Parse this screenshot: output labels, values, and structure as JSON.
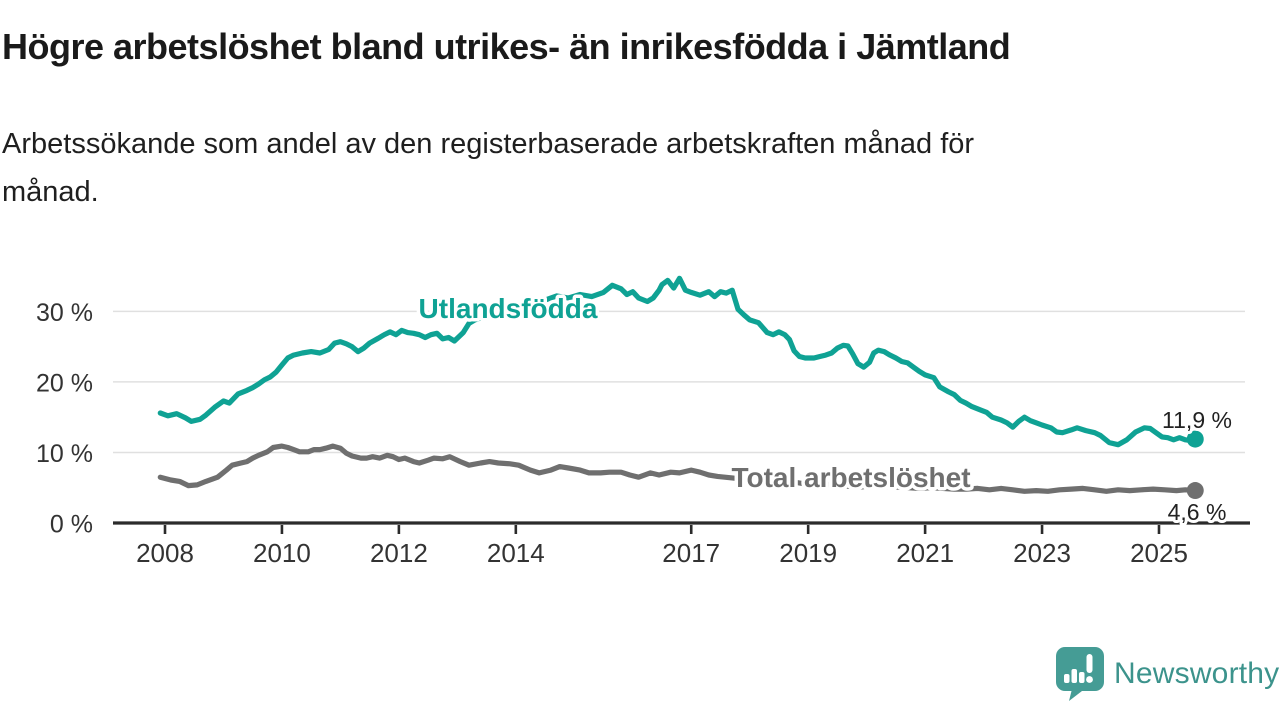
{
  "header": {
    "title": "Högre arbetslöshet bland utrikes- än inrikesfödda i Jämtland",
    "subtitle": "Arbetssökande som andel av den registerbaserade arbetskraften månad för månad.",
    "subtitle_lines": [
      "Arbetssökande som andel av den registerbaserade arbetskraften månad för",
      "månad."
    ]
  },
  "chart_data": {
    "type": "line",
    "title": "Högre arbetslöshet bland utrikes- än inrikesfödda i Jämtland",
    "xlabel": "",
    "ylabel": "Arbetssökande som andel av den registerbaserade arbetskraften",
    "unit": "%",
    "xlim": [
      2007.8,
      2026.3
    ],
    "ylim": [
      0,
      36
    ],
    "grid": true,
    "grid_color": "#e0e0e0",
    "axis_color": "#2b2b2b",
    "tick_label_color": "#333333",
    "value_label_color": "#222222",
    "y_ticks": [
      0,
      10,
      20,
      30
    ],
    "y_tick_suffix": " %",
    "x_ticks": [
      2008,
      2010,
      2012,
      2014,
      2017,
      2019,
      2021,
      2023,
      2025
    ],
    "legend_position": "inline-labels",
    "series": [
      {
        "name": "Utlandsfödda",
        "color": "#0fa294",
        "end_label": "11,9 %",
        "end_value": 11.9,
        "points": [
          [
            2007.92,
            15.6
          ],
          [
            2008.05,
            15.2
          ],
          [
            2008.2,
            15.5
          ],
          [
            2008.35,
            14.9
          ],
          [
            2008.45,
            14.4
          ],
          [
            2008.6,
            14.7
          ],
          [
            2008.7,
            15.3
          ],
          [
            2008.85,
            16.4
          ],
          [
            2009.0,
            17.3
          ],
          [
            2009.1,
            17.0
          ],
          [
            2009.25,
            18.3
          ],
          [
            2009.4,
            18.8
          ],
          [
            2009.5,
            19.2
          ],
          [
            2009.6,
            19.7
          ],
          [
            2009.7,
            20.3
          ],
          [
            2009.8,
            20.7
          ],
          [
            2009.9,
            21.4
          ],
          [
            2010.0,
            22.4
          ],
          [
            2010.1,
            23.4
          ],
          [
            2010.2,
            23.8
          ],
          [
            2010.35,
            24.1
          ],
          [
            2010.5,
            24.3
          ],
          [
            2010.65,
            24.1
          ],
          [
            2010.8,
            24.6
          ],
          [
            2010.9,
            25.5
          ],
          [
            2011.0,
            25.7
          ],
          [
            2011.1,
            25.4
          ],
          [
            2011.2,
            25.0
          ],
          [
            2011.3,
            24.3
          ],
          [
            2011.4,
            24.8
          ],
          [
            2011.5,
            25.5
          ],
          [
            2011.65,
            26.2
          ],
          [
            2011.75,
            26.7
          ],
          [
            2011.85,
            27.1
          ],
          [
            2011.95,
            26.7
          ],
          [
            2012.05,
            27.3
          ],
          [
            2012.15,
            27.0
          ],
          [
            2012.25,
            26.9
          ],
          [
            2012.35,
            26.7
          ],
          [
            2012.45,
            26.3
          ],
          [
            2012.55,
            26.7
          ],
          [
            2012.65,
            26.9
          ],
          [
            2012.75,
            26.1
          ],
          [
            2012.85,
            26.3
          ],
          [
            2012.95,
            25.8
          ],
          [
            2013.1,
            27.0
          ],
          [
            2013.2,
            28.3
          ],
          [
            2013.3,
            28.8
          ],
          [
            2013.5,
            29.4
          ],
          [
            2013.7,
            30.1
          ],
          [
            2013.9,
            30.6
          ],
          [
            2014.1,
            30.3
          ],
          [
            2014.3,
            31.0
          ],
          [
            2014.5,
            31.6
          ],
          [
            2014.7,
            32.2
          ],
          [
            2014.9,
            31.9
          ],
          [
            2015.1,
            32.4
          ],
          [
            2015.3,
            32.1
          ],
          [
            2015.5,
            32.7
          ],
          [
            2015.65,
            33.7
          ],
          [
            2015.8,
            33.2
          ],
          [
            2015.9,
            32.4
          ],
          [
            2016.0,
            32.8
          ],
          [
            2016.1,
            31.9
          ],
          [
            2016.25,
            31.4
          ],
          [
            2016.35,
            31.9
          ],
          [
            2016.45,
            33.0
          ],
          [
            2016.5,
            33.8
          ],
          [
            2016.6,
            34.4
          ],
          [
            2016.7,
            33.3
          ],
          [
            2016.8,
            34.7
          ],
          [
            2016.9,
            33.0
          ],
          [
            2017.0,
            32.7
          ],
          [
            2017.15,
            32.3
          ],
          [
            2017.3,
            32.8
          ],
          [
            2017.4,
            32.1
          ],
          [
            2017.5,
            32.8
          ],
          [
            2017.6,
            32.6
          ],
          [
            2017.7,
            33.0
          ],
          [
            2017.8,
            30.3
          ],
          [
            2017.9,
            29.5
          ],
          [
            2018.0,
            28.8
          ],
          [
            2018.15,
            28.4
          ],
          [
            2018.3,
            27.0
          ],
          [
            2018.4,
            26.7
          ],
          [
            2018.5,
            27.1
          ],
          [
            2018.6,
            26.7
          ],
          [
            2018.68,
            26.0
          ],
          [
            2018.76,
            24.4
          ],
          [
            2018.85,
            23.6
          ],
          [
            2018.95,
            23.4
          ],
          [
            2019.1,
            23.4
          ],
          [
            2019.2,
            23.6
          ],
          [
            2019.3,
            23.8
          ],
          [
            2019.4,
            24.1
          ],
          [
            2019.5,
            24.8
          ],
          [
            2019.6,
            25.2
          ],
          [
            2019.68,
            25.1
          ],
          [
            2019.76,
            24.0
          ],
          [
            2019.85,
            22.6
          ],
          [
            2019.95,
            22.1
          ],
          [
            2020.05,
            22.8
          ],
          [
            2020.12,
            24.1
          ],
          [
            2020.2,
            24.5
          ],
          [
            2020.3,
            24.3
          ],
          [
            2020.4,
            23.8
          ],
          [
            2020.5,
            23.4
          ],
          [
            2020.6,
            22.9
          ],
          [
            2020.7,
            22.7
          ],
          [
            2020.8,
            22.1
          ],
          [
            2020.9,
            21.5
          ],
          [
            2021.0,
            21.0
          ],
          [
            2021.15,
            20.6
          ],
          [
            2021.25,
            19.3
          ],
          [
            2021.4,
            18.6
          ],
          [
            2021.5,
            18.2
          ],
          [
            2021.6,
            17.4
          ],
          [
            2021.7,
            17.0
          ],
          [
            2021.8,
            16.5
          ],
          [
            2021.95,
            16.0
          ],
          [
            2022.05,
            15.7
          ],
          [
            2022.15,
            15.0
          ],
          [
            2022.3,
            14.6
          ],
          [
            2022.4,
            14.2
          ],
          [
            2022.5,
            13.6
          ],
          [
            2022.6,
            14.4
          ],
          [
            2022.7,
            15.0
          ],
          [
            2022.8,
            14.5
          ],
          [
            2022.9,
            14.2
          ],
          [
            2023.0,
            13.9
          ],
          [
            2023.15,
            13.5
          ],
          [
            2023.25,
            12.9
          ],
          [
            2023.35,
            12.8
          ],
          [
            2023.5,
            13.2
          ],
          [
            2023.6,
            13.5
          ],
          [
            2023.75,
            13.1
          ],
          [
            2023.9,
            12.8
          ],
          [
            2024.0,
            12.4
          ],
          [
            2024.15,
            11.4
          ],
          [
            2024.3,
            11.1
          ],
          [
            2024.45,
            11.8
          ],
          [
            2024.6,
            12.9
          ],
          [
            2024.75,
            13.5
          ],
          [
            2024.85,
            13.4
          ],
          [
            2024.95,
            12.8
          ],
          [
            2025.05,
            12.2
          ],
          [
            2025.15,
            12.1
          ],
          [
            2025.25,
            11.8
          ],
          [
            2025.35,
            12.1
          ],
          [
            2025.45,
            11.8
          ],
          [
            2025.55,
            11.7
          ],
          [
            2025.62,
            11.9
          ]
        ]
      },
      {
        "name": "Total arbetslöshet",
        "color": "#6f6f6f",
        "end_label": "4,6 %",
        "end_value": 4.6,
        "points": [
          [
            2007.92,
            6.5
          ],
          [
            2008.1,
            6.1
          ],
          [
            2008.25,
            5.9
          ],
          [
            2008.4,
            5.3
          ],
          [
            2008.55,
            5.4
          ],
          [
            2008.7,
            5.9
          ],
          [
            2008.9,
            6.5
          ],
          [
            2009.05,
            7.5
          ],
          [
            2009.15,
            8.2
          ],
          [
            2009.3,
            8.5
          ],
          [
            2009.4,
            8.7
          ],
          [
            2009.5,
            9.2
          ],
          [
            2009.6,
            9.6
          ],
          [
            2009.75,
            10.1
          ],
          [
            2009.85,
            10.7
          ],
          [
            2010.0,
            10.9
          ],
          [
            2010.1,
            10.7
          ],
          [
            2010.2,
            10.4
          ],
          [
            2010.3,
            10.1
          ],
          [
            2010.45,
            10.1
          ],
          [
            2010.55,
            10.4
          ],
          [
            2010.65,
            10.4
          ],
          [
            2010.75,
            10.6
          ],
          [
            2010.87,
            10.9
          ],
          [
            2011.0,
            10.6
          ],
          [
            2011.1,
            9.9
          ],
          [
            2011.2,
            9.5
          ],
          [
            2011.35,
            9.2
          ],
          [
            2011.45,
            9.2
          ],
          [
            2011.55,
            9.4
          ],
          [
            2011.67,
            9.2
          ],
          [
            2011.8,
            9.6
          ],
          [
            2011.9,
            9.4
          ],
          [
            2012.0,
            9.0
          ],
          [
            2012.1,
            9.2
          ],
          [
            2012.25,
            8.7
          ],
          [
            2012.35,
            8.5
          ],
          [
            2012.5,
            8.9
          ],
          [
            2012.6,
            9.2
          ],
          [
            2012.75,
            9.1
          ],
          [
            2012.87,
            9.4
          ],
          [
            2013.05,
            8.7
          ],
          [
            2013.2,
            8.2
          ],
          [
            2013.4,
            8.5
          ],
          [
            2013.55,
            8.7
          ],
          [
            2013.7,
            8.5
          ],
          [
            2013.9,
            8.4
          ],
          [
            2014.05,
            8.2
          ],
          [
            2014.25,
            7.5
          ],
          [
            2014.4,
            7.1
          ],
          [
            2014.6,
            7.5
          ],
          [
            2014.75,
            8.0
          ],
          [
            2014.9,
            7.8
          ],
          [
            2015.1,
            7.5
          ],
          [
            2015.25,
            7.1
          ],
          [
            2015.45,
            7.1
          ],
          [
            2015.6,
            7.2
          ],
          [
            2015.8,
            7.2
          ],
          [
            2015.95,
            6.8
          ],
          [
            2016.1,
            6.5
          ],
          [
            2016.3,
            7.1
          ],
          [
            2016.45,
            6.8
          ],
          [
            2016.65,
            7.2
          ],
          [
            2016.8,
            7.1
          ],
          [
            2017.0,
            7.5
          ],
          [
            2017.15,
            7.2
          ],
          [
            2017.3,
            6.8
          ],
          [
            2017.45,
            6.6
          ],
          [
            2017.7,
            6.4
          ],
          [
            2017.9,
            6.2
          ],
          [
            2018.1,
            6.3
          ],
          [
            2018.3,
            6.0
          ],
          [
            2018.5,
            5.8
          ],
          [
            2018.7,
            5.9
          ],
          [
            2018.9,
            5.6
          ],
          [
            2019.1,
            5.4
          ],
          [
            2019.3,
            5.5
          ],
          [
            2019.5,
            5.3
          ],
          [
            2019.7,
            5.2
          ],
          [
            2019.9,
            5.1
          ],
          [
            2020.1,
            5.3
          ],
          [
            2020.3,
            5.2
          ],
          [
            2020.5,
            5.1
          ],
          [
            2020.7,
            5.0
          ],
          [
            2020.9,
            4.9
          ],
          [
            2021.1,
            5.0
          ],
          [
            2021.3,
            4.9
          ],
          [
            2021.5,
            4.8
          ],
          [
            2021.7,
            4.8
          ],
          [
            2021.9,
            4.9
          ],
          [
            2022.1,
            4.7
          ],
          [
            2022.3,
            4.9
          ],
          [
            2022.5,
            4.7
          ],
          [
            2022.7,
            4.5
          ],
          [
            2022.9,
            4.6
          ],
          [
            2023.1,
            4.5
          ],
          [
            2023.3,
            4.7
          ],
          [
            2023.5,
            4.8
          ],
          [
            2023.7,
            4.9
          ],
          [
            2023.9,
            4.7
          ],
          [
            2024.1,
            4.5
          ],
          [
            2024.3,
            4.7
          ],
          [
            2024.5,
            4.6
          ],
          [
            2024.7,
            4.7
          ],
          [
            2024.9,
            4.8
          ],
          [
            2025.1,
            4.7
          ],
          [
            2025.3,
            4.6
          ],
          [
            2025.45,
            4.7
          ],
          [
            2025.62,
            4.6
          ]
        ]
      }
    ]
  },
  "footer": {
    "brand": "Newsworthy",
    "brand_color": "#3c938c",
    "icon": "newsworthy-bubble-chart-icon",
    "icon_color": "#459c95"
  }
}
